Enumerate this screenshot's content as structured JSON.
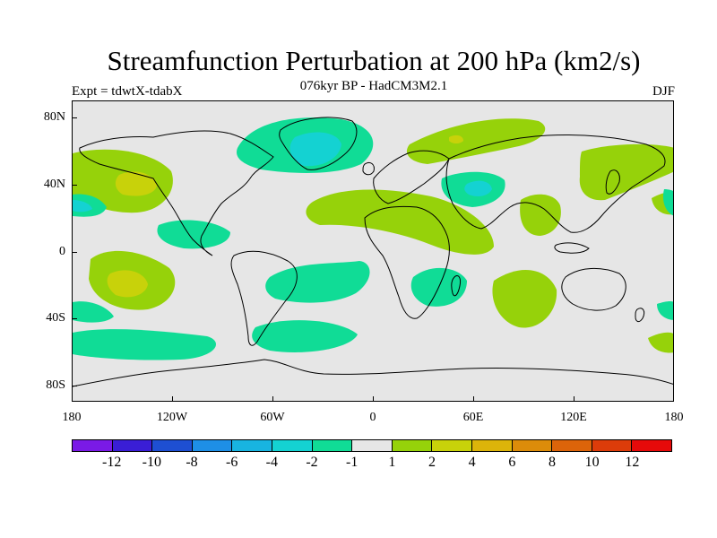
{
  "title": "Streamfunction Perturbation at 200 hPa (km2/s)",
  "subtitle_left": "Expt = tdwtX-tdabX",
  "subtitle_center": "076kyr BP - HadCM3M2.1",
  "subtitle_right": "DJF",
  "lat_labels": [
    "80N",
    "40N",
    "0",
    "40S",
    "80S"
  ],
  "lon_labels": [
    "180",
    "120W",
    "60W",
    "0",
    "60E",
    "120E",
    "180"
  ],
  "colorbar": {
    "colors": [
      "#7a1ae6",
      "#3a1ed6",
      "#1e4fd2",
      "#1e8fe6",
      "#18b4e0",
      "#14d2d2",
      "#10dc96",
      "#e6e6e6",
      "#96d20a",
      "#c8d20a",
      "#dcb40a",
      "#dc8c0a",
      "#dc640a",
      "#dc3c0a",
      "#e60a0a"
    ],
    "labels": [
      "-12",
      "-10",
      "-8",
      "-6",
      "-4",
      "-2",
      "-1",
      "1",
      "2",
      "4",
      "6",
      "8",
      "10",
      "12"
    ]
  },
  "palette": {
    "neg1": "#10dc96",
    "neg2": "#14d2d2",
    "neg4": "#18b4e0",
    "pos1": "#96d20a",
    "pos2": "#c8d20a",
    "pos4": "#dcb40a",
    "background": "#e6e6e6",
    "coast": "#000000"
  }
}
